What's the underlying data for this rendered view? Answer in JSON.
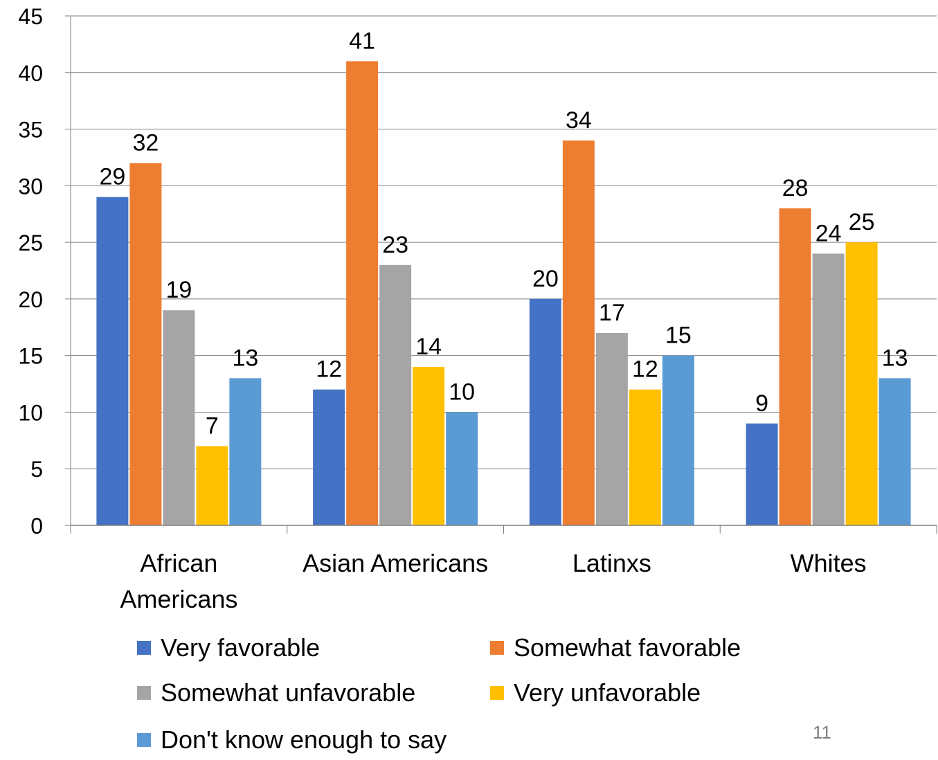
{
  "chart_data": {
    "type": "bar",
    "title": "",
    "xlabel": "",
    "ylabel": "",
    "ylim": [
      0,
      45
    ],
    "yticks": [
      0,
      5,
      10,
      15,
      20,
      25,
      30,
      35,
      40,
      45
    ],
    "grid": true,
    "legend_position": "bottom",
    "categories": [
      "African Americans",
      "Asian Americans",
      "Latinxs",
      "Whites"
    ],
    "series": [
      {
        "name": "Very favorable",
        "color": "#4472C4",
        "values": [
          29,
          12,
          20,
          9
        ]
      },
      {
        "name": "Somewhat favorable",
        "color": "#ED7D31",
        "values": [
          32,
          41,
          34,
          28
        ]
      },
      {
        "name": "Somewhat unfavorable",
        "color": "#A5A5A5",
        "values": [
          19,
          23,
          17,
          24
        ]
      },
      {
        "name": "Very unfavorable",
        "color": "#FFC000",
        "values": [
          7,
          14,
          12,
          25
        ]
      },
      {
        "name": "Don't know enough to say",
        "color": "#5B9BD5",
        "values": [
          13,
          10,
          15,
          13
        ]
      }
    ]
  },
  "page_number": "11"
}
